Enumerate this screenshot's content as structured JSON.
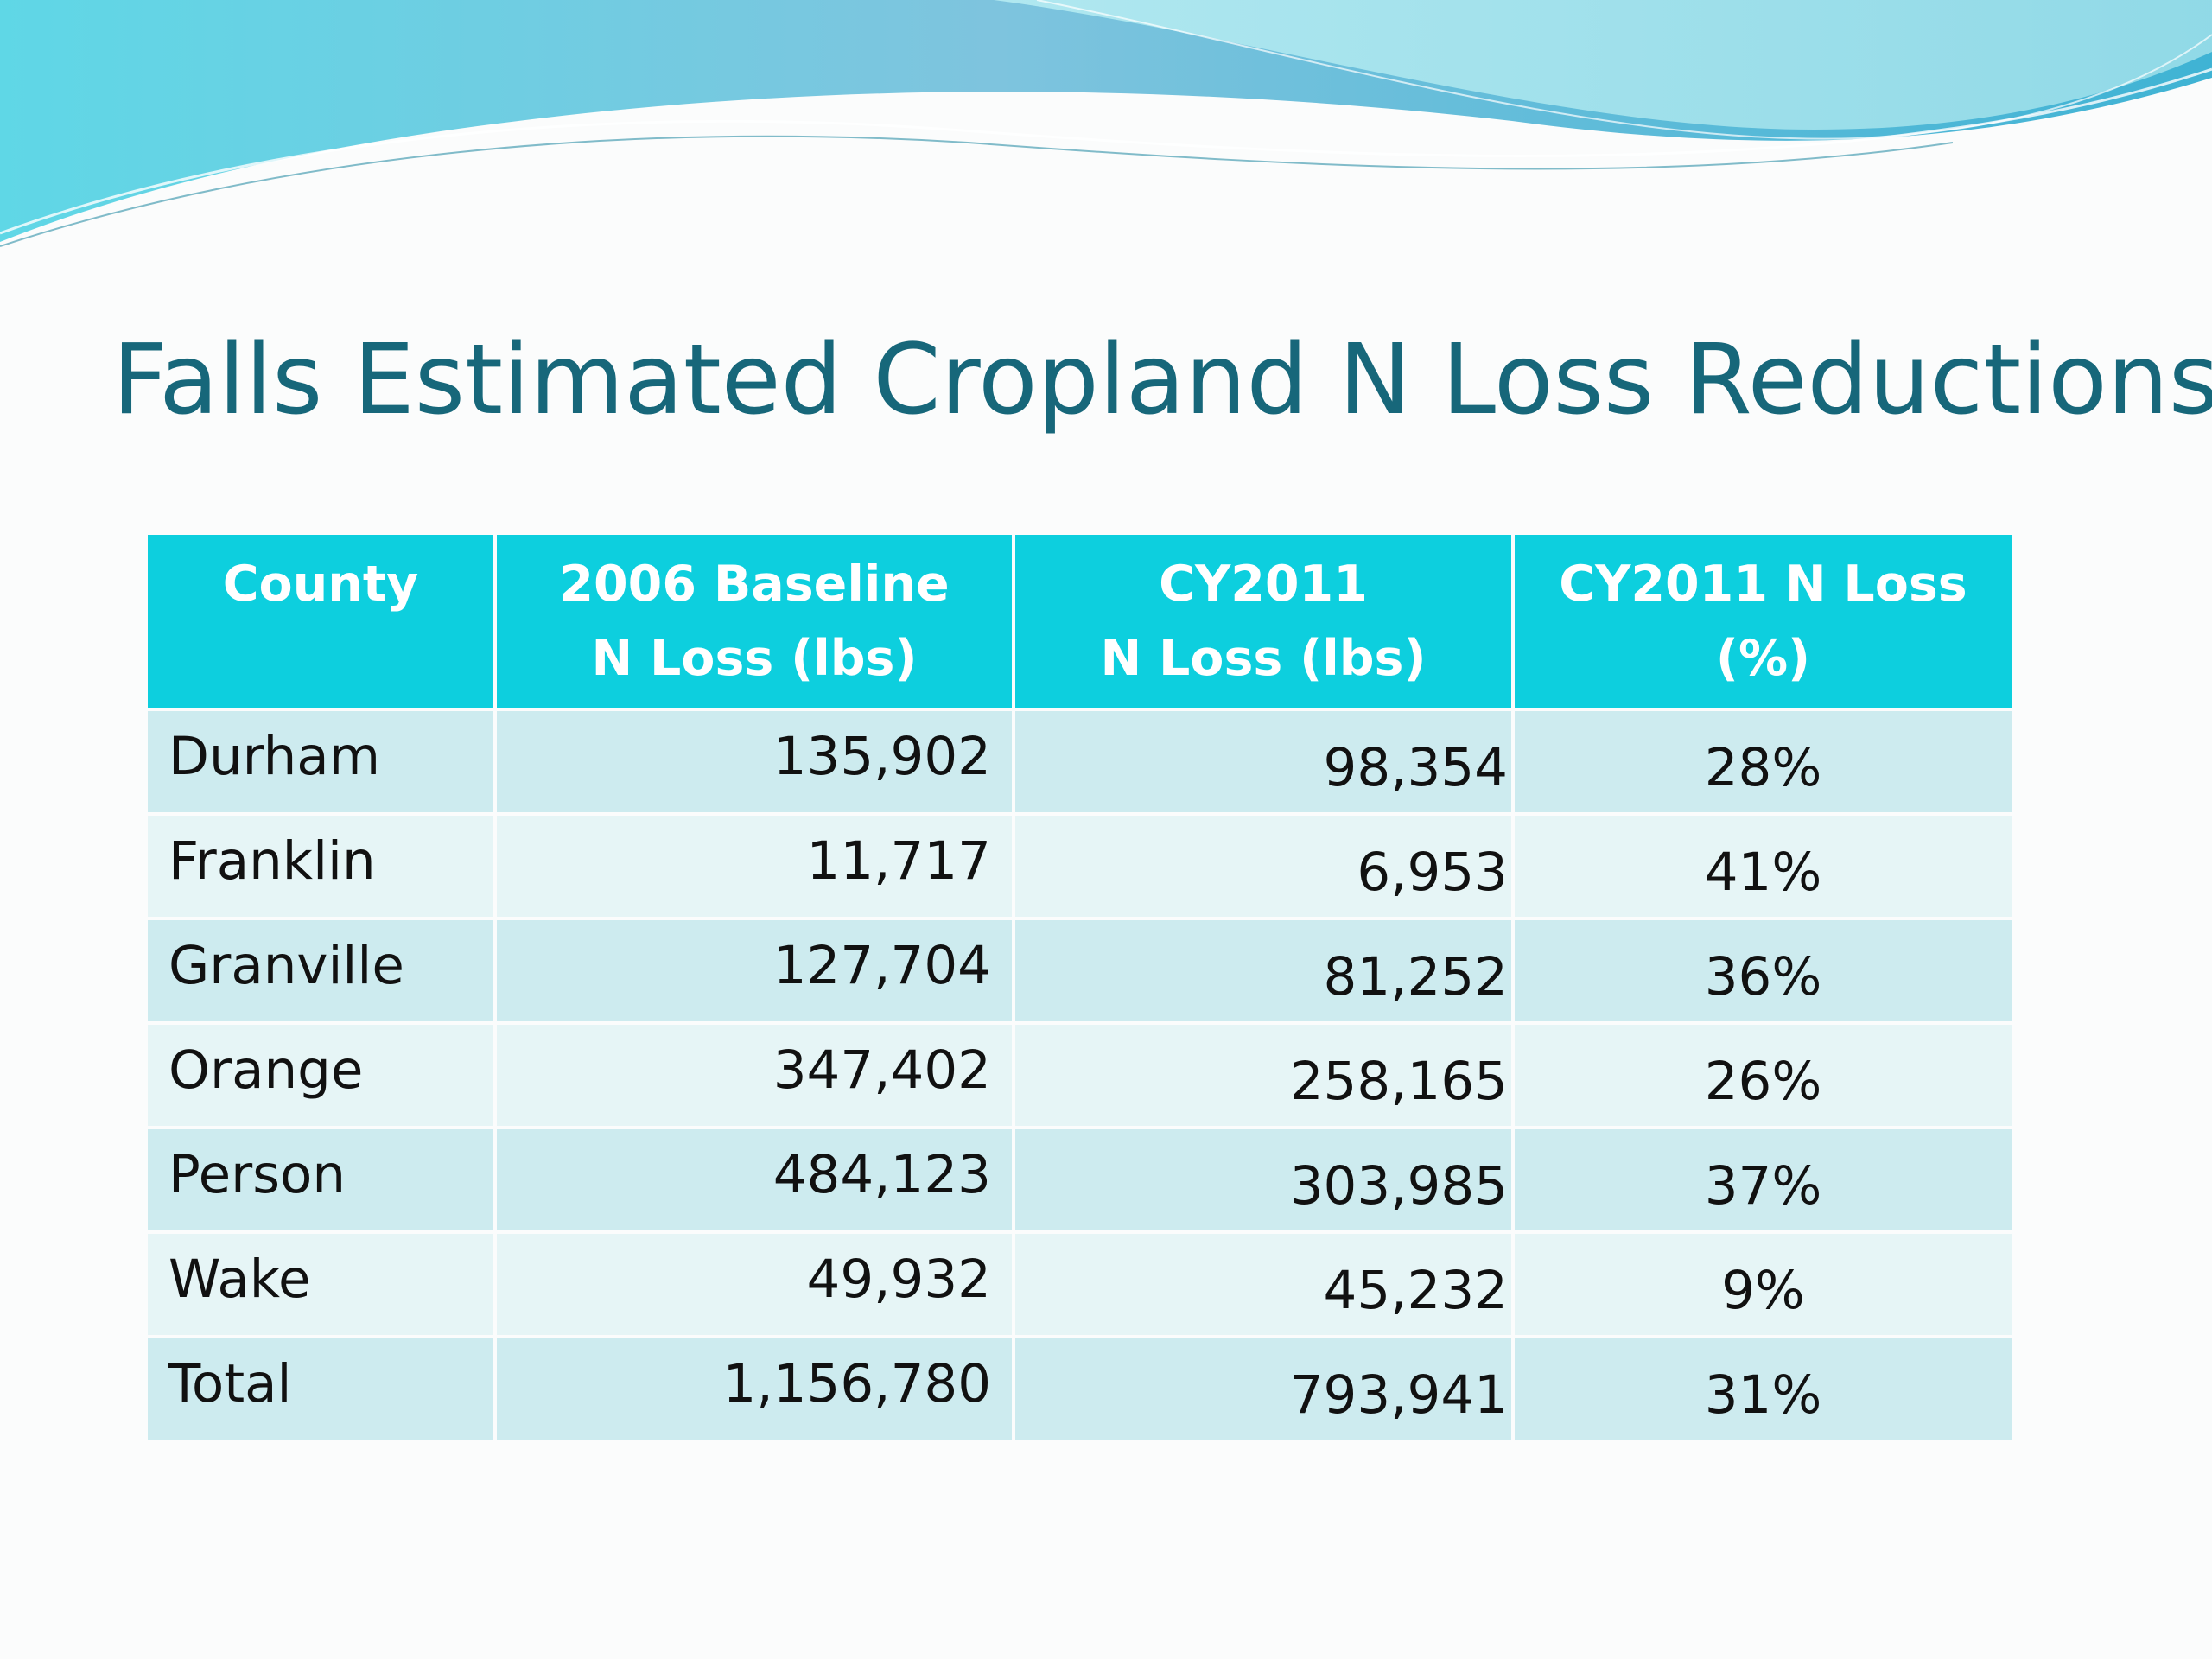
{
  "slide": {
    "title": "Falls Estimated Cropland N Loss Reductions"
  },
  "colors": {
    "title": "#17677a",
    "header_bg": "#0dcfde",
    "row_dark": "#cdebef",
    "row_light": "#e6f5f6"
  },
  "table": {
    "headers": [
      [
        "County"
      ],
      [
        "2006 Baseline",
        "N Loss (lbs)"
      ],
      [
        "CY2011",
        "N Loss (lbs)"
      ],
      [
        "CY2011 N Loss",
        "(%)"
      ]
    ],
    "rows": [
      [
        "Durham",
        "135,902",
        "98,354",
        "28%"
      ],
      [
        "Franklin",
        "11,717",
        "6,953",
        "41%"
      ],
      [
        "Granville",
        "127,704",
        "81,252",
        "36%"
      ],
      [
        "Orange",
        "347,402",
        "258,165",
        "26%"
      ],
      [
        "Person",
        "484,123",
        "303,985",
        "37%"
      ],
      [
        "Wake",
        "49,932",
        "45,232",
        "9%"
      ],
      [
        "Total",
        "1,156,780",
        "793,941",
        "31%"
      ]
    ]
  }
}
